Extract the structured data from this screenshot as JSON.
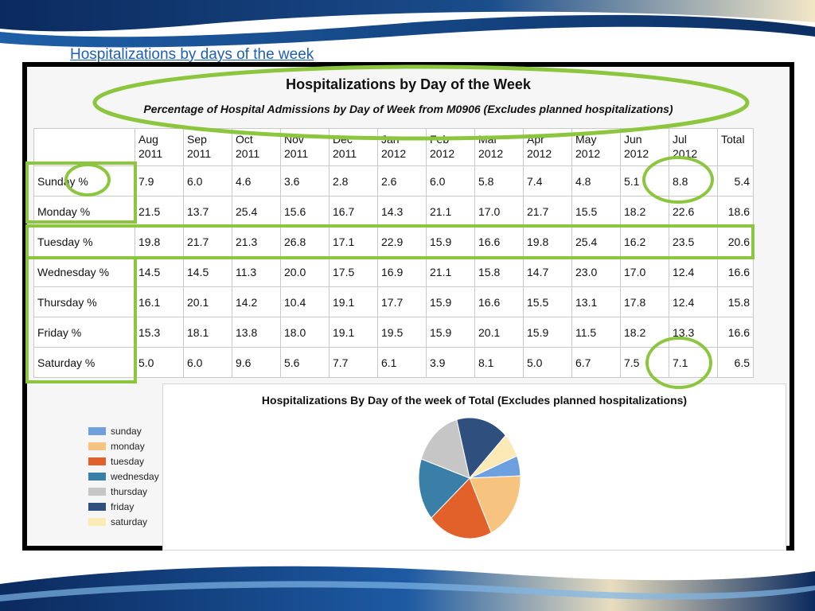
{
  "slide": {
    "title": "Hospitalizations by days of the week"
  },
  "table": {
    "title": "Hospitalizations by Day of the Week",
    "subtitle": "Percentage of Hospital Admissions by Day of Week from M0906 (Excludes planned hospitalizations)",
    "months": [
      {
        "line1": "Aug",
        "line2": "2011"
      },
      {
        "line1": "Sep",
        "line2": "2011"
      },
      {
        "line1": "Oct",
        "line2": "2011"
      },
      {
        "line1": "Nov",
        "line2": "2011"
      },
      {
        "line1": "Dec",
        "line2": "2011"
      },
      {
        "line1": "Jan",
        "line2": "2012"
      },
      {
        "line1": "Feb",
        "line2": "2012"
      },
      {
        "line1": "Mar",
        "line2": "2012"
      },
      {
        "line1": "Apr",
        "line2": "2012"
      },
      {
        "line1": "May",
        "line2": "2012"
      },
      {
        "line1": "Jun",
        "line2": "2012"
      },
      {
        "line1": "Jul",
        "line2": "2012"
      }
    ],
    "total_label": "Total",
    "rows": [
      {
        "label": "Sunday %",
        "values": [
          "7.9",
          "6.0",
          "4.6",
          "3.6",
          "2.8",
          "2.6",
          "6.0",
          "5.8",
          "7.4",
          "4.8",
          "5.1",
          "8.8"
        ],
        "total": "5.4"
      },
      {
        "label": "Monday %",
        "values": [
          "21.5",
          "13.7",
          "25.4",
          "15.6",
          "16.7",
          "14.3",
          "21.1",
          "17.0",
          "21.7",
          "15.5",
          "18.2",
          "22.6"
        ],
        "total": "18.6"
      },
      {
        "label": "Tuesday %",
        "values": [
          "19.8",
          "21.7",
          "21.3",
          "26.8",
          "17.1",
          "22.9",
          "15.9",
          "16.6",
          "19.8",
          "25.4",
          "16.2",
          "23.5"
        ],
        "total": "20.6"
      },
      {
        "label": "Wednesday %",
        "values": [
          "14.5",
          "14.5",
          "11.3",
          "20.0",
          "17.5",
          "16.9",
          "21.1",
          "15.8",
          "14.7",
          "23.0",
          "17.0",
          "12.4"
        ],
        "total": "16.6"
      },
      {
        "label": "Thursday %",
        "values": [
          "16.1",
          "20.1",
          "14.2",
          "10.4",
          "19.1",
          "17.7",
          "15.9",
          "16.6",
          "15.5",
          "13.1",
          "17.8",
          "12.4"
        ],
        "total": "15.8"
      },
      {
        "label": "Friday %",
        "values": [
          "15.3",
          "18.1",
          "13.8",
          "18.0",
          "19.1",
          "19.5",
          "15.9",
          "20.1",
          "15.9",
          "11.5",
          "18.2",
          "13.3"
        ],
        "total": "16.6"
      },
      {
        "label": "Saturday %",
        "values": [
          "5.0",
          "6.0",
          "9.6",
          "5.6",
          "7.7",
          "6.1",
          "3.9",
          "8.1",
          "5.0",
          "6.7",
          "7.5",
          "7.1"
        ],
        "total": "6.5"
      }
    ]
  },
  "chart_data": {
    "type": "pie",
    "title": "Hospitalizations By Day of the week of Total  (Excludes planned hospitalizations)",
    "legend_position": "left",
    "categories": [
      "sunday",
      "monday",
      "tuesday",
      "wednesday",
      "thursday",
      "friday",
      "saturday"
    ],
    "values": [
      5.4,
      18.6,
      20.6,
      16.6,
      15.8,
      16.6,
      6.5
    ],
    "colors": [
      "#6ea0e0",
      "#f6c47e",
      "#e2612a",
      "#3a7fa8",
      "#c6c6c6",
      "#2f4f7f",
      "#fbe9b6"
    ]
  },
  "annotations": {
    "color": "#8cc63f"
  }
}
